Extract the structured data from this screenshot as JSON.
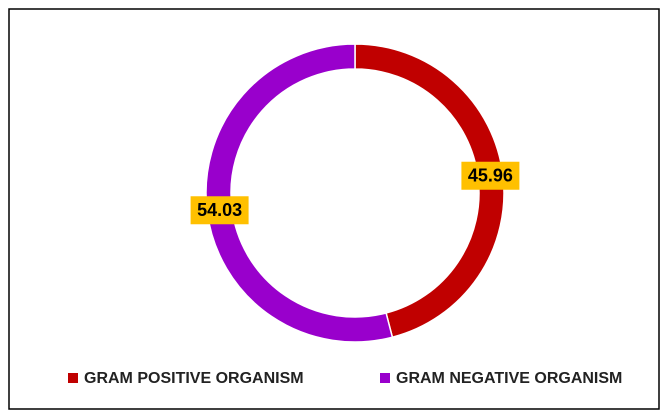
{
  "chart_data": {
    "type": "donut",
    "categories": [
      "GRAM POSITIVE ORGANISM",
      "GRAM NEGATIVE ORGANISM"
    ],
    "values": [
      45.96,
      54.03
    ],
    "colors": [
      "#c00000",
      "#9900cc"
    ],
    "label_color": "#ffc000",
    "legend": "bottom"
  }
}
